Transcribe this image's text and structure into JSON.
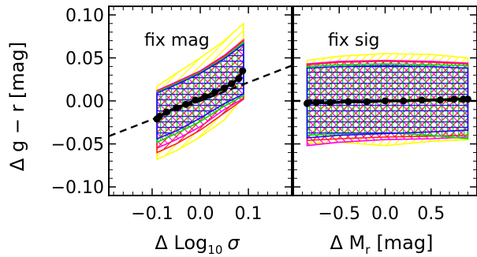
{
  "colors": {
    "yellow": "#ffff00",
    "magenta": "#ff00ff",
    "red": "#ff2020",
    "green": "#00e000",
    "blue": "#1010ff",
    "black": "#000000"
  },
  "chart_data": [
    {
      "type": "line",
      "panel_label": "fix mag",
      "xlabel_main": "Δ Log",
      "xlabel_sub": "10",
      "xlabel_tail": "σ",
      "ylabel": "Δ g − r [mag]",
      "xlim": [
        -0.19,
        0.19
      ],
      "ylim": [
        -0.11,
        0.11
      ],
      "xticks": [
        -0.1,
        0.0,
        0.1
      ],
      "xtick_labels": [
        "−0.1",
        "0.0",
        "0.1"
      ],
      "yticks": [
        -0.1,
        -0.05,
        0.0,
        0.05,
        0.1
      ],
      "ytick_labels": [
        "−0.10",
        "−0.05",
        "0.00",
        "0.05",
        "0.10"
      ],
      "fit_line": {
        "x": [
          -0.19,
          0.19
        ],
        "y": [
          -0.041,
          0.041
        ]
      },
      "series": [
        {
          "x": [
            -0.09,
            -0.085,
            -0.07,
            -0.05,
            -0.03,
            -0.01,
            0.01,
            0.03,
            0.05,
            0.065,
            0.08,
            0.088
          ],
          "y": [
            -0.021,
            -0.018,
            -0.013,
            -0.008,
            -0.004,
            0.001,
            0.005,
            0.01,
            0.015,
            0.02,
            0.026,
            0.035
          ]
        }
      ],
      "bands": [
        {
          "color": "yellow",
          "x": [
            -0.09,
            -0.05,
            0.0,
            0.05,
            0.09
          ],
          "upper": [
            0.017,
            0.032,
            0.05,
            0.07,
            0.09
          ],
          "lower": [
            -0.068,
            -0.058,
            -0.042,
            -0.022,
            0.005
          ]
        },
        {
          "color": "magenta",
          "x": [
            -0.09,
            -0.05,
            0.0,
            0.05,
            0.09
          ],
          "upper": [
            0.012,
            0.022,
            0.035,
            0.053,
            0.071
          ],
          "lower": [
            -0.055,
            -0.045,
            -0.03,
            -0.01,
            0.003
          ]
        },
        {
          "color": "red",
          "x": [
            -0.09,
            -0.05,
            0.0,
            0.05,
            0.09
          ],
          "upper": [
            0.011,
            0.021,
            0.034,
            0.052,
            0.07
          ],
          "lower": [
            -0.06,
            -0.05,
            -0.034,
            -0.014,
            0.002
          ]
        },
        {
          "color": "green",
          "x": [
            -0.09,
            -0.05,
            0.0,
            0.05,
            0.09
          ],
          "upper": [
            0.01,
            0.02,
            0.033,
            0.05,
            0.068
          ],
          "lower": [
            -0.048,
            -0.038,
            -0.024,
            -0.006,
            0.006
          ]
        },
        {
          "color": "blue",
          "x": [
            -0.09,
            -0.05,
            0.0,
            0.05,
            0.09
          ],
          "upper": [
            0.009,
            0.019,
            0.032,
            0.049,
            0.066
          ],
          "lower": [
            -0.044,
            -0.035,
            -0.02,
            -0.003,
            0.008
          ]
        }
      ]
    },
    {
      "type": "line",
      "panel_label": "fix sig",
      "xlabel_main": "Δ M",
      "xlabel_sub": "r",
      "xlabel_tail": "[mag]",
      "ylabel": "",
      "xlim": [
        -1.0,
        1.0
      ],
      "ylim": [
        -0.11,
        0.11
      ],
      "xticks": [
        -0.5,
        0.0,
        0.5
      ],
      "xtick_labels": [
        "−0.5",
        "0.0",
        "0.5"
      ],
      "yticks": [
        -0.1,
        -0.05,
        0.0,
        0.05,
        0.1
      ],
      "ytick_labels": [
        "",
        "",
        "",
        "",
        ""
      ],
      "fit_line": {
        "x": [
          -1.0,
          1.0
        ],
        "y": [
          0.0,
          0.0
        ]
      },
      "series": [
        {
          "x": [
            -0.85,
            -0.75,
            -0.6,
            -0.4,
            -0.2,
            0.0,
            0.2,
            0.4,
            0.6,
            0.75,
            0.85,
            0.9
          ],
          "y": [
            -0.003,
            -0.002,
            -0.002,
            -0.001,
            -0.001,
            0.0,
            0.0,
            0.001,
            0.001,
            0.002,
            0.002,
            0.002
          ]
        }
      ],
      "bands": [
        {
          "color": "yellow",
          "x": [
            -0.85,
            -0.5,
            0.0,
            0.5,
            0.9
          ],
          "upper": [
            0.047,
            0.052,
            0.055,
            0.054,
            0.05
          ],
          "lower": [
            -0.05,
            -0.048,
            -0.052,
            -0.047,
            -0.045
          ]
        },
        {
          "color": "magenta",
          "x": [
            -0.85,
            -0.5,
            0.0,
            0.5,
            0.9
          ],
          "upper": [
            0.043,
            0.046,
            0.047,
            0.046,
            0.044
          ],
          "lower": [
            -0.052,
            -0.048,
            -0.045,
            -0.044,
            -0.042
          ]
        },
        {
          "color": "red",
          "x": [
            -0.85,
            -0.5,
            0.0,
            0.5,
            0.9
          ],
          "upper": [
            0.042,
            0.045,
            0.046,
            0.045,
            0.043
          ],
          "lower": [
            -0.046,
            -0.044,
            -0.042,
            -0.041,
            -0.04
          ]
        },
        {
          "color": "green",
          "x": [
            -0.85,
            -0.5,
            0.0,
            0.5,
            0.9
          ],
          "upper": [
            0.04,
            0.042,
            0.043,
            0.042,
            0.041
          ],
          "lower": [
            -0.04,
            -0.038,
            -0.037,
            -0.04,
            -0.044
          ]
        },
        {
          "color": "blue",
          "x": [
            -0.85,
            -0.5,
            0.0,
            0.5,
            0.9
          ],
          "upper": [
            0.038,
            0.04,
            0.041,
            0.04,
            0.038
          ],
          "lower": [
            -0.043,
            -0.04,
            -0.038,
            -0.036,
            -0.034
          ]
        }
      ]
    }
  ]
}
